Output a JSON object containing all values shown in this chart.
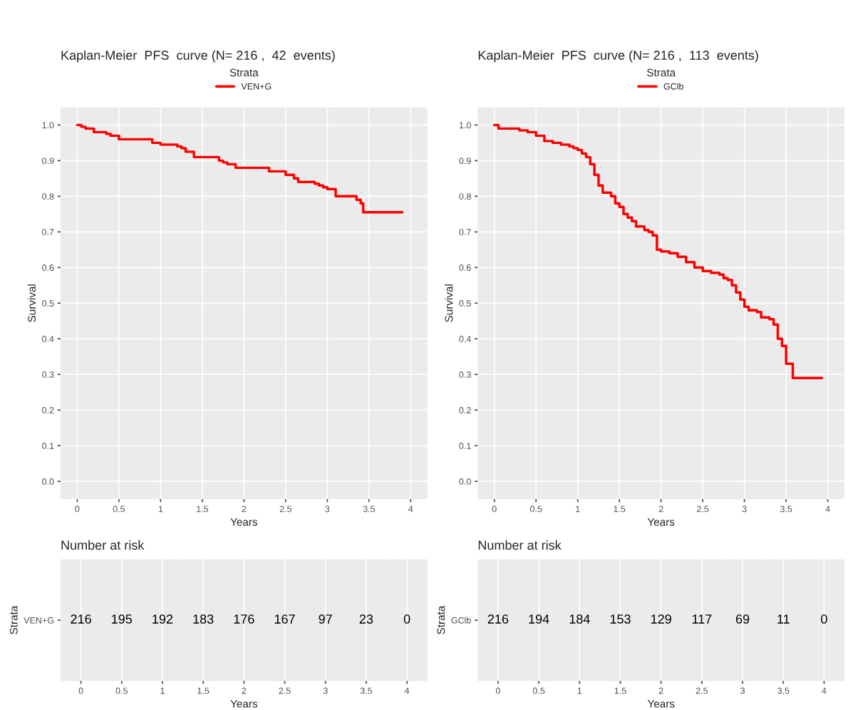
{
  "chart_data": [
    {
      "type": "step",
      "title": "Kaplan-Meier  PFS  curve (N= 216 ,  42  events)",
      "legend_title": "Strata",
      "legend": "top",
      "xlabel": "Years",
      "ylabel": "Survival",
      "grid": true,
      "line_style": "solid",
      "series": [
        {
          "name": "VEN+G",
          "color": "#ff0000",
          "x": [
            0,
            0.05,
            0.1,
            0.2,
            0.35,
            0.4,
            0.5,
            0.9,
            1.0,
            1.2,
            1.25,
            1.3,
            1.4,
            1.7,
            1.75,
            1.8,
            1.9,
            2.3,
            2.5,
            2.6,
            2.65,
            2.85,
            2.9,
            2.95,
            3.0,
            3.1,
            3.35,
            3.4,
            3.43,
            3.9
          ],
          "values": [
            1.0,
            0.995,
            0.99,
            0.98,
            0.975,
            0.97,
            0.96,
            0.95,
            0.945,
            0.94,
            0.935,
            0.925,
            0.91,
            0.9,
            0.895,
            0.89,
            0.88,
            0.87,
            0.86,
            0.85,
            0.84,
            0.835,
            0.83,
            0.825,
            0.82,
            0.8,
            0.79,
            0.78,
            0.755,
            0.755
          ]
        }
      ],
      "xlim": [
        -0.2,
        4.2
      ],
      "xticks": [
        0,
        0.5,
        1,
        1.5,
        2,
        2.5,
        3,
        3.5,
        4
      ],
      "ylim": [
        -0.05,
        1.05
      ],
      "yticks": [
        {
          "value": 0,
          "label": "0.0"
        },
        {
          "value": 0.1,
          "label": "0.1"
        },
        {
          "value": 0.2,
          "label": "0.2"
        },
        {
          "value": 0.3,
          "label": "0.3"
        },
        {
          "value": 0.4,
          "label": "0.4"
        },
        {
          "value": 0.5,
          "label": "0.5"
        },
        {
          "value": 0.6,
          "label": "0.6"
        },
        {
          "value": 0.7,
          "label": "0.7"
        },
        {
          "value": 0.8,
          "label": "0.8"
        },
        {
          "value": 0.9,
          "label": "0.9"
        },
        {
          "value": 1.0,
          "label": "1.0"
        }
      ]
    },
    {
      "type": "step",
      "title": "Kaplan-Meier  PFS  curve (N= 216 ,  113  events)",
      "legend_title": "Strata",
      "legend": "top",
      "xlabel": "Years",
      "ylabel": "Survival",
      "grid": true,
      "line_style": "solid",
      "series": [
        {
          "name": "GClb",
          "color": "#ff0000",
          "x": [
            0,
            0.05,
            0.3,
            0.4,
            0.5,
            0.6,
            0.7,
            0.8,
            0.9,
            0.95,
            1.0,
            1.05,
            1.1,
            1.15,
            1.2,
            1.25,
            1.3,
            1.4,
            1.45,
            1.5,
            1.55,
            1.6,
            1.65,
            1.7,
            1.8,
            1.85,
            1.9,
            1.95,
            2.0,
            2.1,
            2.2,
            2.3,
            2.4,
            2.5,
            2.6,
            2.7,
            2.75,
            2.8,
            2.85,
            2.9,
            2.95,
            3.0,
            3.05,
            3.15,
            3.2,
            3.3,
            3.35,
            3.4,
            3.45,
            3.5,
            3.58,
            3.93
          ],
          "values": [
            1.0,
            0.99,
            0.985,
            0.98,
            0.97,
            0.955,
            0.95,
            0.945,
            0.94,
            0.935,
            0.93,
            0.92,
            0.91,
            0.89,
            0.86,
            0.83,
            0.81,
            0.8,
            0.78,
            0.77,
            0.75,
            0.74,
            0.73,
            0.715,
            0.705,
            0.7,
            0.69,
            0.65,
            0.645,
            0.64,
            0.63,
            0.615,
            0.6,
            0.59,
            0.585,
            0.58,
            0.57,
            0.565,
            0.55,
            0.53,
            0.51,
            0.49,
            0.48,
            0.475,
            0.46,
            0.455,
            0.44,
            0.4,
            0.38,
            0.33,
            0.29,
            0.29
          ]
        }
      ],
      "xlim": [
        -0.2,
        4.2
      ],
      "xticks": [
        0,
        0.5,
        1,
        1.5,
        2,
        2.5,
        3,
        3.5,
        4
      ],
      "ylim": [
        -0.05,
        1.05
      ],
      "yticks": [
        {
          "value": 0,
          "label": "0.0"
        },
        {
          "value": 0.1,
          "label": "0.1"
        },
        {
          "value": 0.2,
          "label": "0.2"
        },
        {
          "value": 0.3,
          "label": "0.3"
        },
        {
          "value": 0.4,
          "label": "0.4"
        },
        {
          "value": 0.5,
          "label": "0.5"
        },
        {
          "value": 0.6,
          "label": "0.6"
        },
        {
          "value": 0.7,
          "label": "0.7"
        },
        {
          "value": 0.8,
          "label": "0.8"
        },
        {
          "value": 0.9,
          "label": "0.9"
        },
        {
          "value": 1.0,
          "label": "1.0"
        }
      ]
    },
    {
      "type": "heatmap",
      "title": "Number at risk",
      "xlabel": "Years",
      "ylabel": "Strata",
      "grid": "x",
      "data_labels": true,
      "categories": [
        "0",
        "0.5",
        "1",
        "1.5",
        "2",
        "2.5",
        "3",
        "3.5",
        "4"
      ],
      "y_categories": [
        "VEN+G"
      ],
      "cells": [
        [
          216,
          195,
          192,
          183,
          176,
          167,
          97,
          23,
          0
        ]
      ]
    },
    {
      "type": "heatmap",
      "title": "Number at risk",
      "xlabel": "Years",
      "ylabel": "Strata",
      "grid": "x",
      "data_labels": true,
      "categories": [
        "0",
        "0.5",
        "1",
        "1.5",
        "2",
        "2.5",
        "3",
        "3.5",
        "4"
      ],
      "y_categories": [
        "GClb"
      ],
      "cells": [
        [
          216,
          194,
          184,
          153,
          129,
          117,
          69,
          11,
          0
        ]
      ]
    }
  ]
}
